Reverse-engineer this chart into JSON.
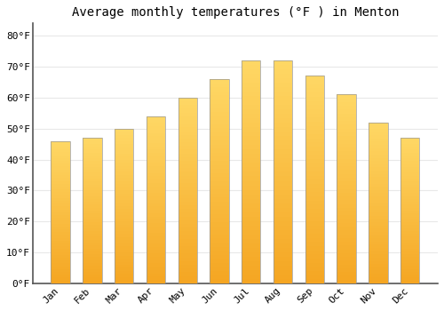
{
  "title": "Average monthly temperatures (°F ) in Menton",
  "months": [
    "Jan",
    "Feb",
    "Mar",
    "Apr",
    "May",
    "Jun",
    "Jul",
    "Aug",
    "Sep",
    "Oct",
    "Nov",
    "Dec"
  ],
  "values": [
    46,
    47,
    50,
    54,
    60,
    66,
    72,
    72,
    67,
    61,
    52,
    47
  ],
  "bar_edge_color": "#999999",
  "bar_edge_width": 0.5,
  "background_color": "#FFFFFF",
  "grid_color": "#E8E8E8",
  "title_fontsize": 10,
  "tick_fontsize": 8,
  "yticks": [
    0,
    10,
    20,
    30,
    40,
    50,
    60,
    70,
    80
  ],
  "ylim": [
    0,
    84
  ],
  "font_family": "monospace",
  "bar_color_bottom": "#F5A623",
  "bar_color_top": "#FFD966",
  "bar_width": 0.6,
  "left_spine_color": "#555555"
}
